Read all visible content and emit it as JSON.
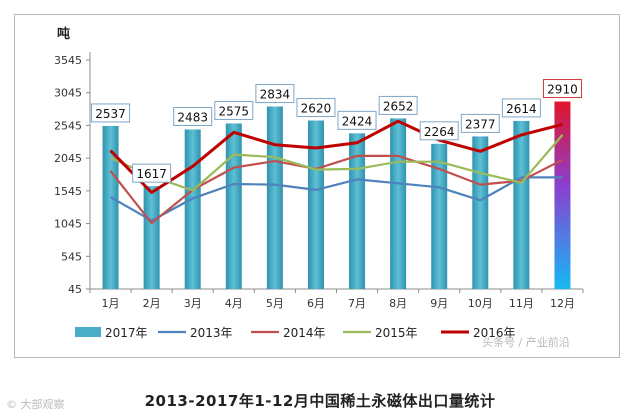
{
  "chart_data": {
    "type": "bar",
    "title": "2013-2017年1-12月中国稀土永磁体出口量统计",
    "ylabel": "吨",
    "xlabel": "",
    "ylim": [
      45,
      3545
    ],
    "yticks": [
      45,
      545,
      1045,
      1545,
      2045,
      2545,
      3045,
      3545
    ],
    "categories": [
      "1月",
      "2月",
      "3月",
      "4月",
      "5月",
      "6月",
      "7月",
      "8月",
      "9月",
      "10月",
      "11月",
      "12月"
    ],
    "bars": {
      "name": "2017年",
      "color": "#4bacc6",
      "values": [
        2537,
        1617,
        2483,
        2575,
        2834,
        2620,
        2424,
        2652,
        2264,
        2377,
        2614,
        2910
      ],
      "labels": [
        "2537",
        "1617",
        "2483",
        "2575",
        "2834",
        "2620",
        "2424",
        "2652",
        "2264",
        "2377",
        "2614",
        "2910"
      ]
    },
    "series": [
      {
        "name": "2013年",
        "color": "#4f81bd",
        "values": [
          1450,
          1090,
          1430,
          1650,
          1640,
          1560,
          1720,
          1660,
          1600,
          1400,
          1750,
          1750
        ]
      },
      {
        "name": "2014年",
        "color": "#c0504d",
        "values": [
          1850,
          1050,
          1560,
          1900,
          2000,
          1880,
          2080,
          2080,
          1880,
          1640,
          1700,
          2020
        ]
      },
      {
        "name": "2015年",
        "color": "#9bbb59",
        "values": [
          2050,
          1770,
          1550,
          2100,
          2060,
          1870,
          1880,
          1990,
          1990,
          1820,
          1670,
          2400
        ]
      },
      {
        "name": "2016年",
        "color": "#c00000",
        "values": [
          2160,
          1520,
          1920,
          2440,
          2250,
          2200,
          2280,
          2610,
          2320,
          2150,
          2400,
          2560
        ]
      }
    ],
    "legend_position": "bottom",
    "grid": false,
    "data_labels": true
  },
  "caption": "2013-2017年1-12月中国稀土永磁体出口量统计",
  "watermark": "头条号 / 产业前沿",
  "logo_text": "© 大部观察"
}
